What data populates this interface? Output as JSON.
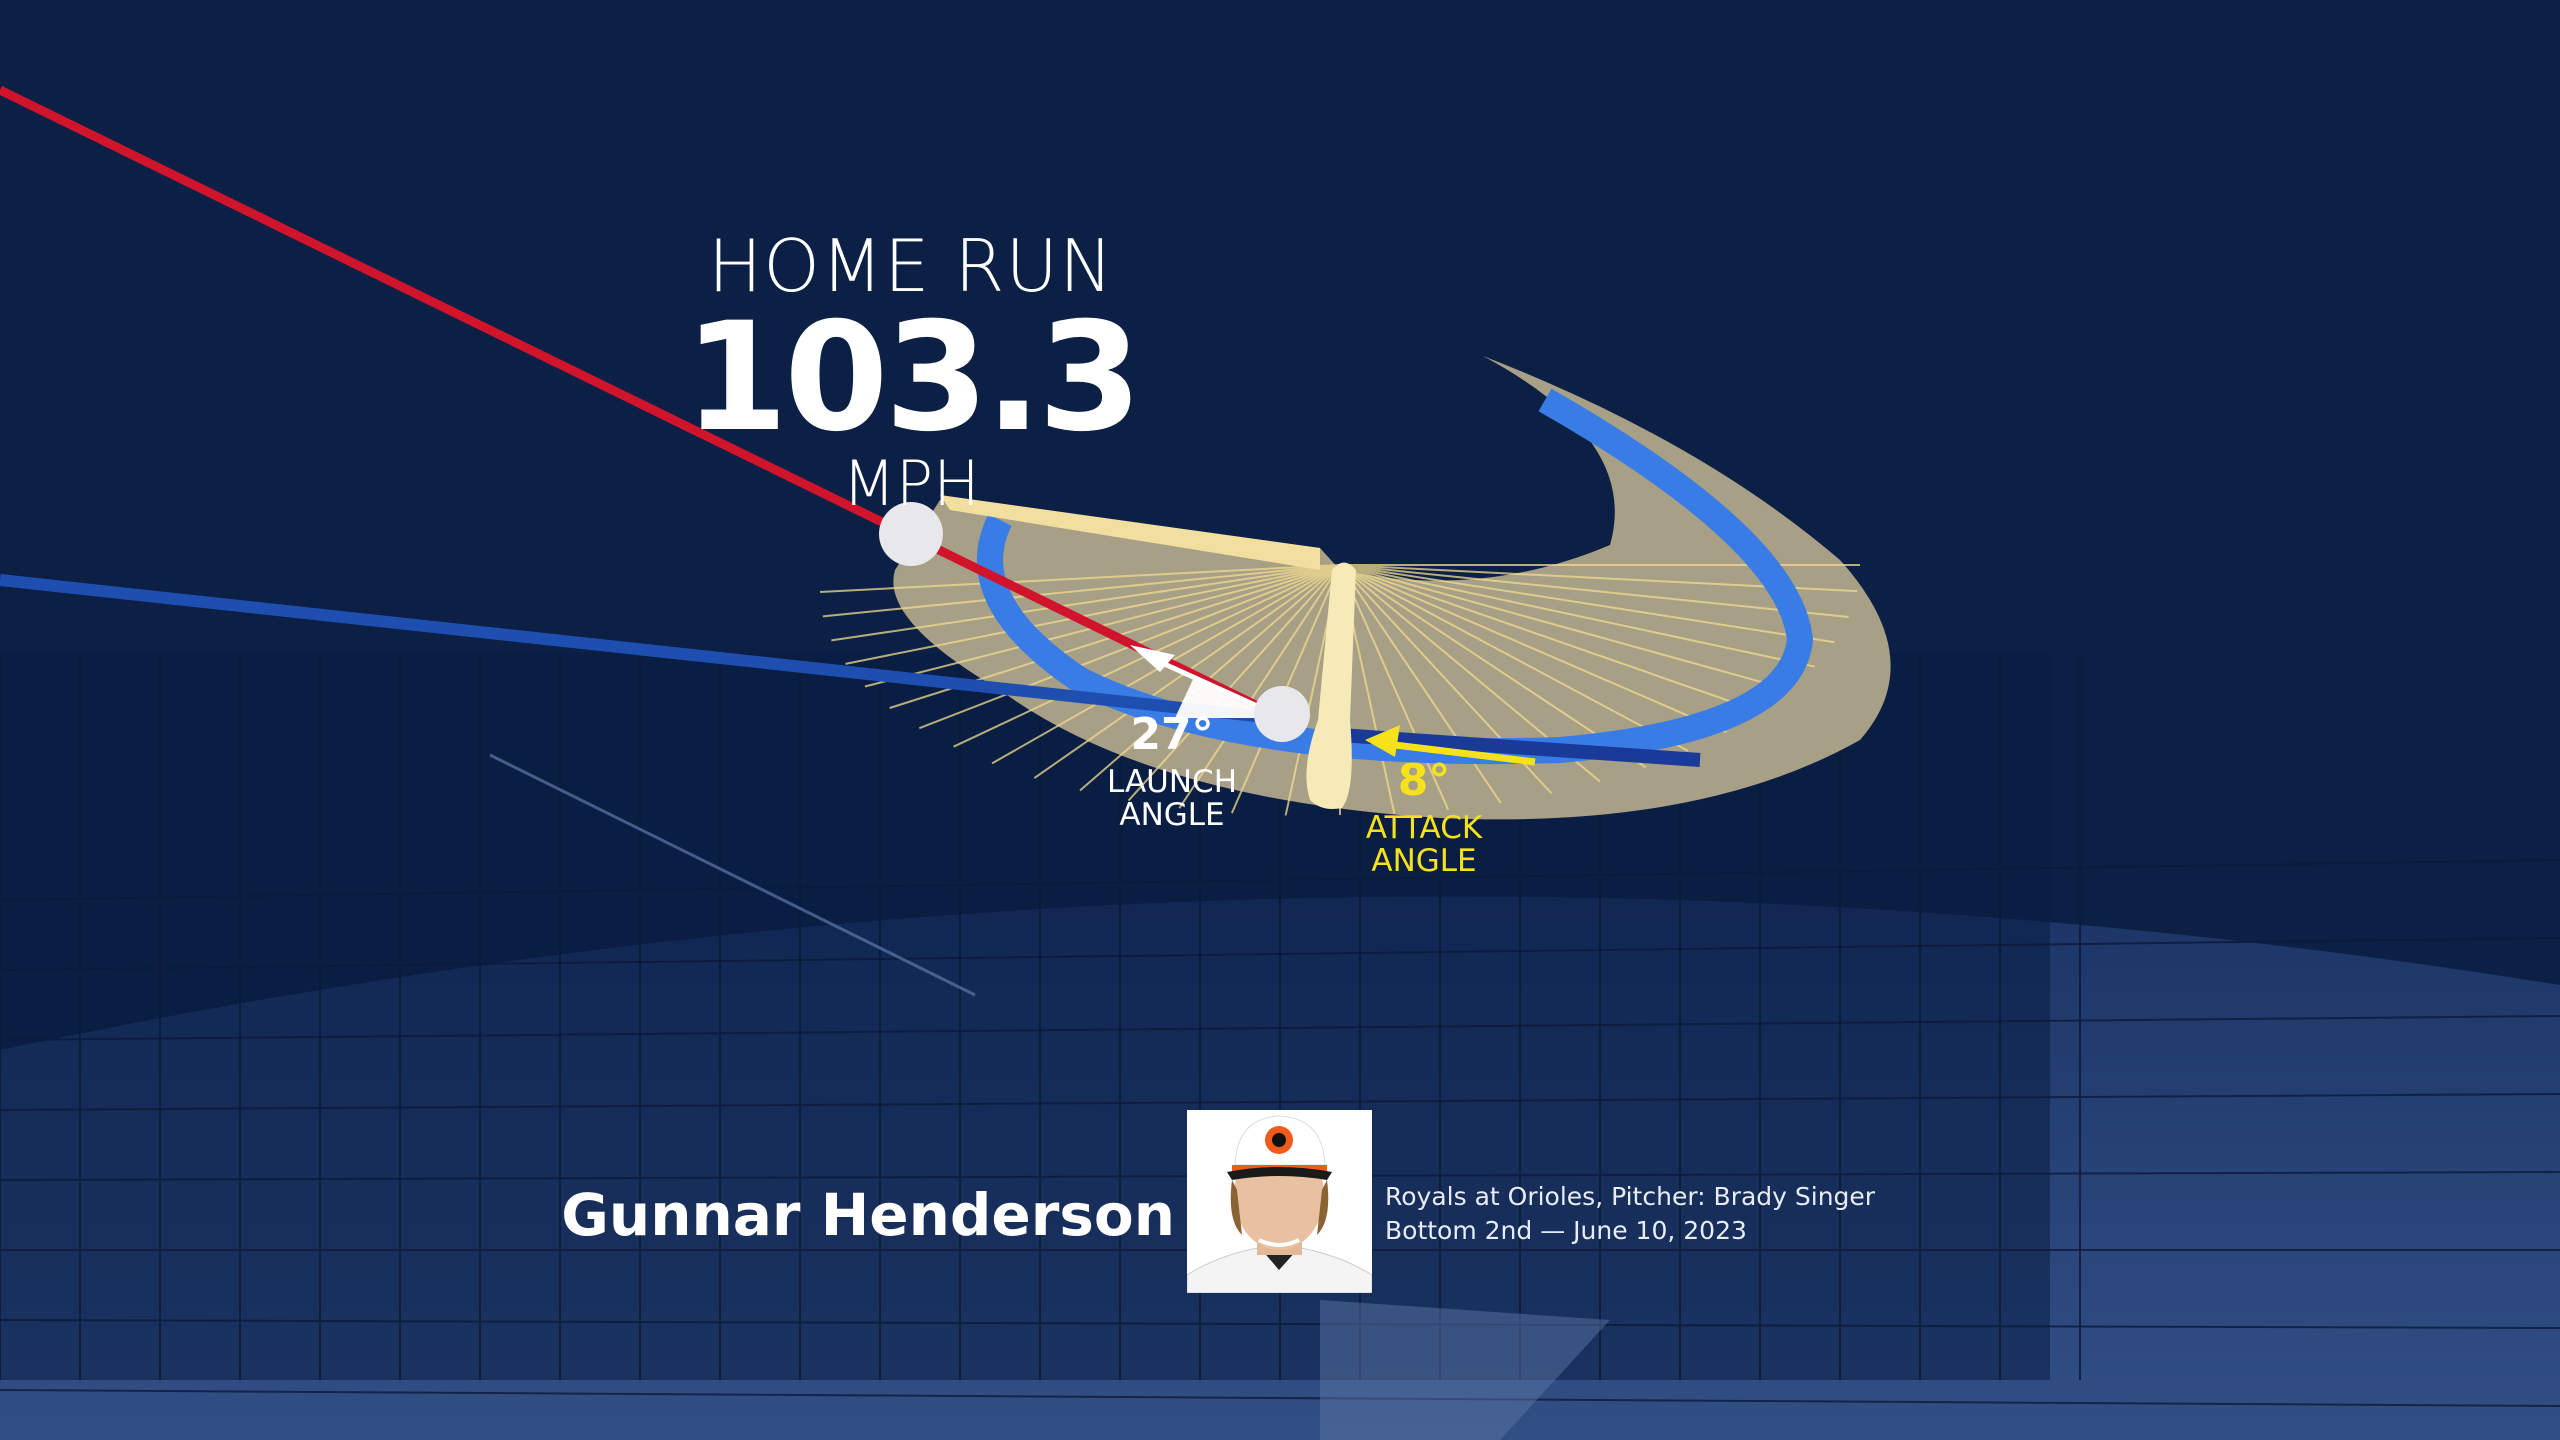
{
  "hit": {
    "result": "HOME RUN",
    "exit_velocity": "103.3",
    "unit": "MPH"
  },
  "launch_angle": {
    "value": "27°",
    "label": "LAUNCH ANGLE"
  },
  "attack_angle": {
    "value": "8°",
    "label": "ATTACK ANGLE"
  },
  "player": {
    "name": "Gunnar Henderson"
  },
  "game": {
    "line1": "Royals at Orioles, Pitcher: Brady Singer",
    "line2": "Bottom 2nd — June 10, 2023"
  },
  "colors": {
    "background": "#0c2046",
    "ball_path": "#d0142c",
    "pitch_path": "#1e4fb0",
    "swing_plane": "#a79f86",
    "swing_band": "#3a7ce6",
    "attack_angle": "#f5e21a"
  }
}
